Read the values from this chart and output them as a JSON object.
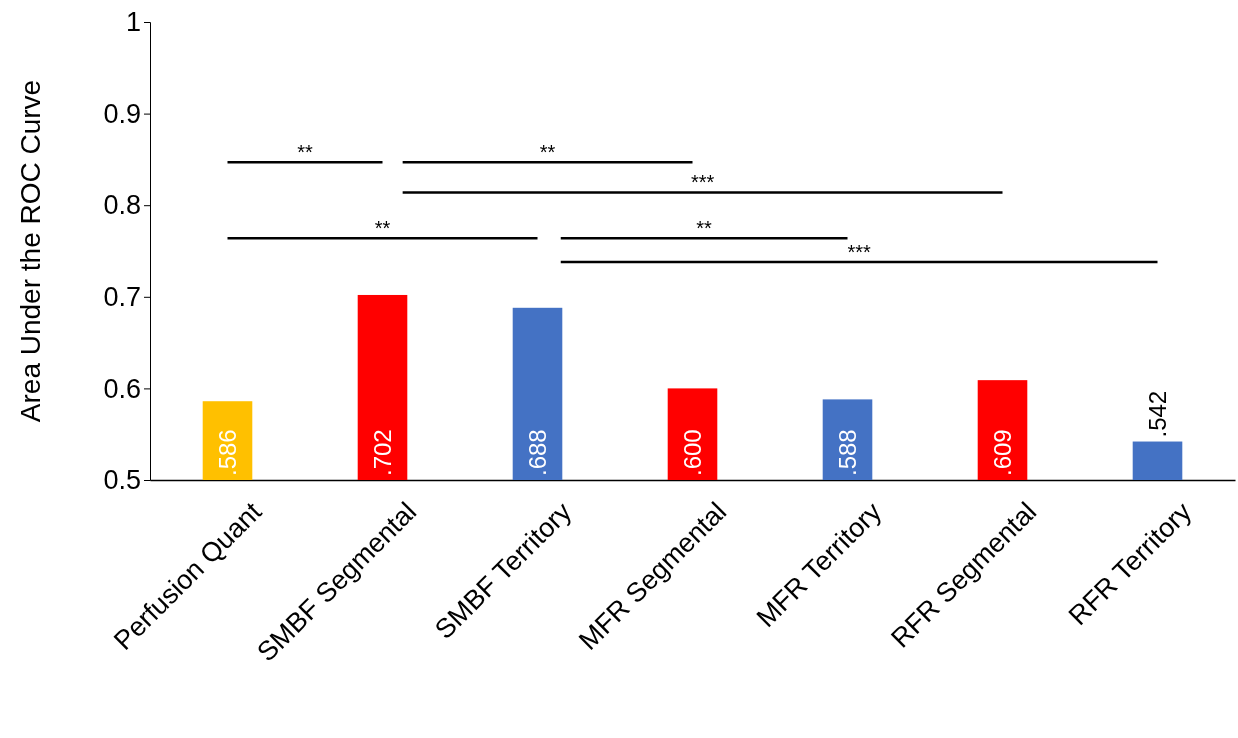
{
  "chart_data": {
    "type": "bar",
    "ylabel": "Area Under the ROC Curve",
    "categories": [
      "Perfusion Quant",
      "SMBF Segmental",
      "SMBF Territory",
      "MFR Segmental",
      "MFR Territory",
      "RFR Segmental",
      "RFR Territory"
    ],
    "values": [
      0.586,
      0.702,
      0.688,
      0.6,
      0.588,
      0.609,
      0.542
    ],
    "colors": [
      "#ffc000",
      "#ff0000",
      "#4472c4",
      "#ff0000",
      "#4472c4",
      "#ff0000",
      "#4472c4"
    ],
    "value_labels": [
      ".586",
      ".702",
      ".688",
      ".600",
      ".588",
      ".609",
      ".542"
    ],
    "ylim": [
      0.5,
      1
    ],
    "yticks": [
      0.5,
      0.6,
      0.7,
      0.8,
      0.9,
      1
    ],
    "grid": false,
    "annotations": [
      "**",
      "**",
      "***",
      "**",
      "**",
      "***"
    ]
  }
}
